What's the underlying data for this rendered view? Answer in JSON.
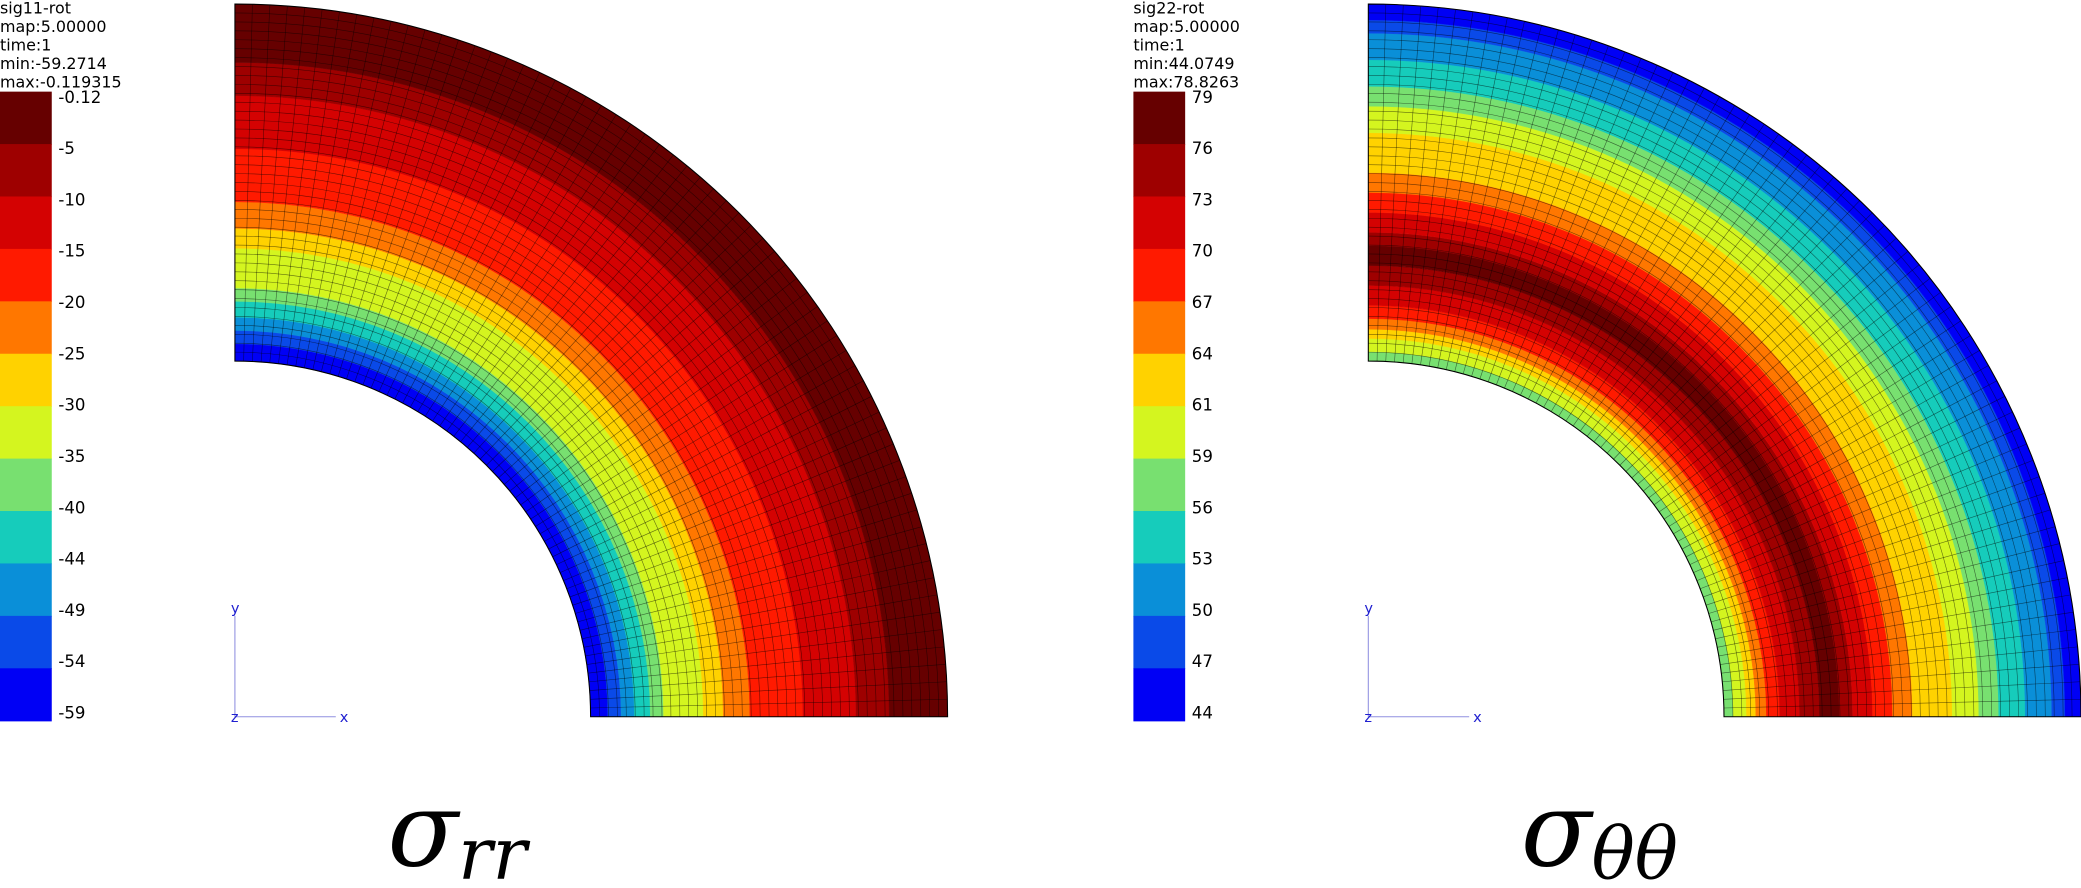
{
  "panels": [
    {
      "header": [
        "sig11-rot",
        "map:5.00000",
        "time:1",
        "min:-59.2714",
        "max:-0.119315"
      ],
      "legend": {
        "labels": [
          -0.12,
          -5,
          -10,
          -15,
          -20,
          -25,
          -30,
          -35,
          -40,
          -44,
          -49,
          -54,
          -59
        ],
        "colors": [
          "#660000",
          "#9e0000",
          "#d40202",
          "#ff1a00",
          "#ff7700",
          "#ffd200",
          "#d4f51f",
          "#78e070",
          "#16ccbb",
          "#0a8fd8",
          "#0a4ae8",
          "#0000f5"
        ]
      },
      "axes": {
        "y": "y",
        "z": "z",
        "x": "x"
      },
      "caption": {
        "symbol": "σ",
        "subscript": "rr"
      }
    },
    {
      "header": [
        "sig22-rot",
        "map:5.00000",
        "time:1",
        "min:44.0749",
        "max:78.8263"
      ],
      "legend": {
        "labels": [
          79,
          76,
          73,
          70,
          67,
          64,
          61,
          59,
          56,
          53,
          50,
          47,
          44
        ],
        "colors": [
          "#660000",
          "#9e0000",
          "#d40202",
          "#ff1a00",
          "#ff7700",
          "#ffd200",
          "#d4f51f",
          "#78e070",
          "#16ccbb",
          "#0a8fd8",
          "#0a4ae8",
          "#0000f5"
        ]
      },
      "axes": {
        "y": "y",
        "z": "z",
        "x": "x"
      },
      "caption": {
        "symbol": "σ",
        "subscript": "θθ"
      }
    }
  ]
}
